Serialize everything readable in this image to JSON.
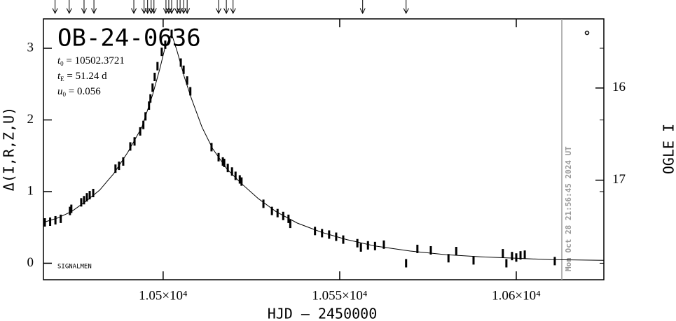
{
  "chart_data": {
    "type": "scatter",
    "title": "OB-24-0636",
    "params": [
      {
        "symbol": "t",
        "sub": "0",
        "text": " = 10502.3721"
      },
      {
        "symbol": "t",
        "sub": "E",
        "text": " = 51.24 d"
      },
      {
        "symbol": "u",
        "sub": "0",
        "text": " = 0.056"
      }
    ],
    "footer_label": "SIGNALMEN",
    "timestamp": "Mon Oct 28 21:56:45 2024 UT",
    "timestamp_x": 10612.9,
    "x_label": "HJD – 2450000",
    "y_label": "Δ(I,R,Z,U)",
    "y2_label": "OGLE I",
    "xlim": [
      10466.1,
      10624.8
    ],
    "xticks": [
      {
        "value": 10500,
        "label": "1.05×10⁴"
      },
      {
        "value": 10550,
        "label": "1.055×10⁴"
      },
      {
        "value": 10600,
        "label": "1.06×10⁴"
      }
    ],
    "ylim": [
      -0.23,
      3.41
    ],
    "yticks": [
      0,
      1,
      2,
      3
    ],
    "y2lim": [
      18.08,
      15.25
    ],
    "y2ticks": [
      16,
      17
    ],
    "color": "#000000",
    "arrows": [
      10469.4,
      10473.4,
      10477.6,
      10480.4,
      10491.7,
      10494.6,
      10495.6,
      10496.6,
      10497.4,
      10500.8,
      10501.6,
      10502.4,
      10504,
      10504.8,
      10505.8,
      10506.8,
      10515.7,
      10517.9,
      10519.8,
      10556.5,
      10568.8
    ],
    "points": {
      "x": [
        10466.5,
        10468,
        10469.5,
        10471,
        10473.6,
        10474,
        10476.8,
        10477.6,
        10478.4,
        10479.2,
        10480.2,
        10486.5,
        10487.5,
        10488.7,
        10490.7,
        10491.9,
        10493.5,
        10494.4,
        10495,
        10496,
        10496.4,
        10497,
        10497.6,
        10498.4,
        10499.6,
        10500.6,
        10502.4,
        10505,
        10505.8,
        10506.8,
        10507.7,
        10513.7,
        10515.7,
        10516.9,
        10517.3,
        10518.3,
        10519.5,
        10520.5,
        10521.7,
        10522.2,
        10528.4,
        10530.8,
        10532.4,
        10534,
        10535.5,
        10536,
        10543,
        10545,
        10547,
        10549,
        10551,
        10555,
        10556,
        10558,
        10560,
        10562.5,
        10568.8,
        10572,
        10575.8,
        10580.8,
        10583,
        10587.9,
        10596.2,
        10597.2,
        10598.8,
        10600,
        10601.2,
        10602.4,
        10610.9
      ],
      "values": [
        0.57,
        0.58,
        0.6,
        0.62,
        0.73,
        0.76,
        0.85,
        0.88,
        0.92,
        0.95,
        0.98,
        1.32,
        1.36,
        1.42,
        1.63,
        1.7,
        1.84,
        1.93,
        2.05,
        2.2,
        2.3,
        2.45,
        2.6,
        2.75,
        2.95,
        3.05,
        3.2,
        2.8,
        2.7,
        2.55,
        2.4,
        1.62,
        1.48,
        1.42,
        1.4,
        1.33,
        1.28,
        1.22,
        1.17,
        1.14,
        0.83,
        0.73,
        0.7,
        0.66,
        0.62,
        0.55,
        0.45,
        0.42,
        0.4,
        0.37,
        0.33,
        0.28,
        0.22,
        0.25,
        0.24,
        0.26,
        0.0,
        0.2,
        0.18,
        0.07,
        0.17,
        0.04,
        0.14,
        0.0,
        0.1,
        0.08,
        0.11,
        0.12,
        0.03
      ]
    },
    "model": {
      "x": [
        10466.1,
        10470,
        10474,
        10478,
        10482,
        10486,
        10490,
        10494,
        10497,
        10499,
        10500.5,
        10502.4,
        10504,
        10506,
        10508,
        10511,
        10514,
        10518,
        10522,
        10527,
        10532,
        10538,
        10545,
        10552,
        10560,
        10570,
        10580,
        10590,
        10600,
        10610,
        10624.8
      ],
      "values": [
        0.57,
        0.63,
        0.72,
        0.86,
        1.02,
        1.25,
        1.55,
        1.9,
        2.35,
        2.7,
        3.0,
        3.2,
        2.95,
        2.6,
        2.3,
        1.9,
        1.6,
        1.32,
        1.12,
        0.9,
        0.72,
        0.56,
        0.43,
        0.33,
        0.24,
        0.17,
        0.12,
        0.09,
        0.07,
        0.05,
        0.04
      ]
    }
  }
}
